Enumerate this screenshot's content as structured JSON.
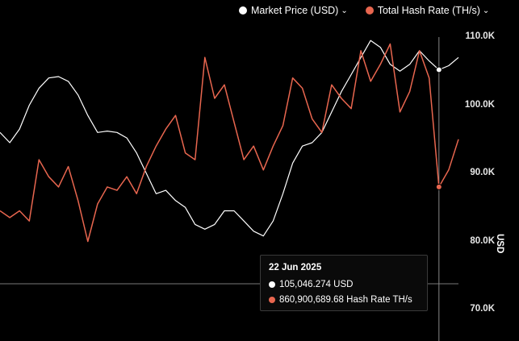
{
  "legend": [
    {
      "label": "Market Price (USD)",
      "color": "#ffffff",
      "icon": "chevron-down-icon"
    },
    {
      "label": "Total Hash Rate (TH/s)",
      "color": "#e8664f",
      "icon": "chevron-down-icon"
    }
  ],
  "axis": {
    "label": "USD",
    "ticks": [
      "110.0K",
      "100.0K",
      "90.0K",
      "80.0K",
      "70.0K"
    ]
  },
  "tooltip": {
    "date": "22 Jun 2025",
    "price": "105,046.274 USD",
    "hashrate": "860,900,689.68 Hash Rate TH/s"
  },
  "chart_data": {
    "type": "line",
    "y_axis_label": "USD",
    "ylim": [
      65000,
      112500
    ],
    "y_ticks": [
      110000,
      100000,
      90000,
      80000,
      70000
    ],
    "grid": false,
    "legend_position": "top-right",
    "cursor": {
      "date": "22 Jun 2025",
      "price": 105046.274,
      "hashrate": 860900689.68
    },
    "series": [
      {
        "name": "Market Price (USD)",
        "color": "#ffffff",
        "values": [
          96000,
          94500,
          96500,
          100000,
          102500,
          104000,
          104200,
          103500,
          101500,
          98500,
          96000,
          96200,
          96000,
          95200,
          93000,
          90000,
          87000,
          87500,
          86000,
          85000,
          82500,
          81800,
          82500,
          84500,
          84500,
          83000,
          81500,
          80800,
          83000,
          87000,
          91500,
          94000,
          94500,
          96000,
          99000,
          102000,
          104500,
          107000,
          109500,
          108500,
          106000,
          105000,
          106000,
          108000,
          106500,
          105200,
          105800,
          107000
        ]
      },
      {
        "name": "Total Hash Rate (TH/s)",
        "color": "#e8664f",
        "values": [
          84500,
          83500,
          84500,
          83000,
          92000,
          89500,
          88000,
          91000,
          86000,
          80000,
          85500,
          88000,
          87500,
          89500,
          87000,
          91000,
          94000,
          96500,
          98500,
          93000,
          92000,
          107000,
          101000,
          103000,
          97500,
          92000,
          94000,
          90500,
          94000,
          97000,
          104000,
          102500,
          98000,
          96000,
          103000,
          101000,
          99500,
          108000,
          103500,
          106000,
          109000,
          99000,
          102000,
          108000,
          104000,
          88000,
          90500,
          95000
        ]
      }
    ]
  }
}
